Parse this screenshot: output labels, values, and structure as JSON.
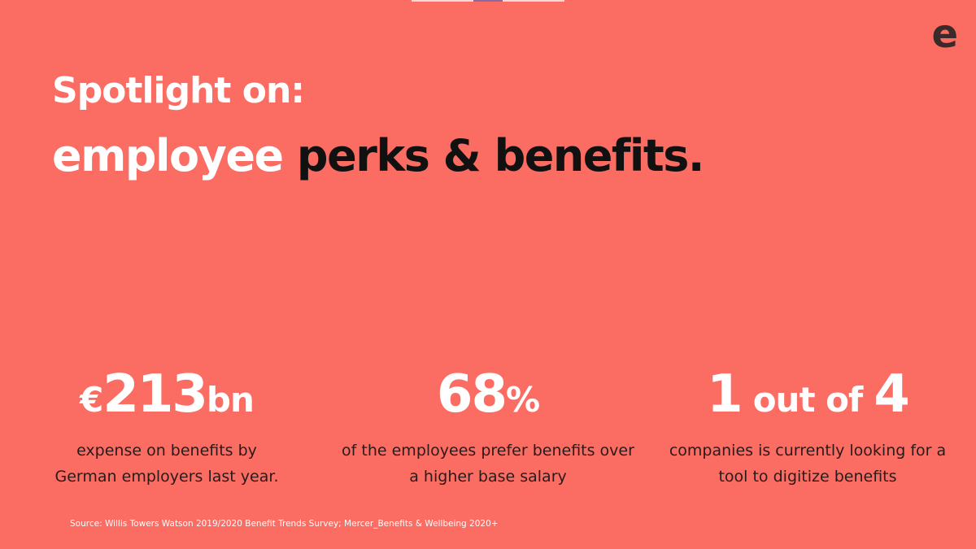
{
  "header": {
    "logo": "e",
    "title": "Spotlight on:",
    "subtitle": [
      "employee",
      "perks & benefits."
    ]
  },
  "stats": [
    {
      "parts": [
        "€",
        "213",
        "bn"
      ],
      "description": [
        "expense on benefits by",
        "German employers last year."
      ]
    },
    {
      "parts": [
        "68",
        "%"
      ],
      "description": [
        "of the employees prefer benefits over",
        "a higher base salary"
      ]
    },
    {
      "parts": [
        "1",
        "out of",
        "4"
      ],
      "description": [
        "companies is currently looking for a",
        "tool to digitize benefits"
      ]
    }
  ],
  "source": "Source: Willis Towers Watson 2019/2020 Benefit Trends Survey; Mercer_Benefits & Wellbeing 2020+"
}
